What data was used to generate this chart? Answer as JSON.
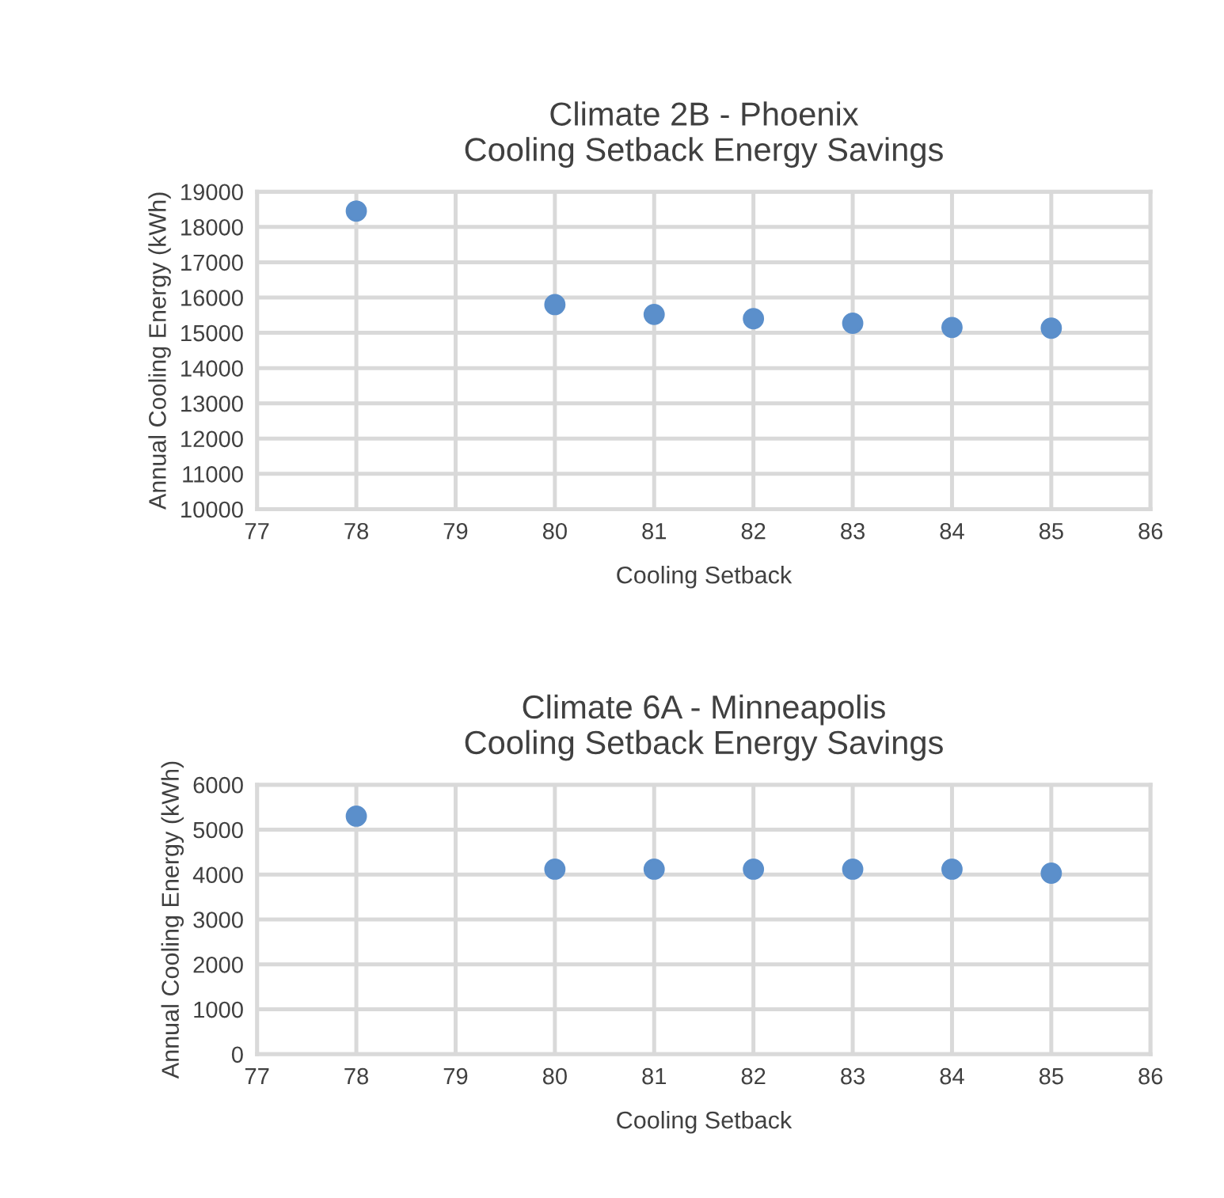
{
  "chart_data": [
    {
      "type": "scatter",
      "title": "Climate 2B - Phoenix\nCooling Setback Energy Savings",
      "xlabel": "Cooling Setback",
      "ylabel": "Annual Cooling Energy (kWh)",
      "x": [
        78,
        80,
        81,
        82,
        83,
        84,
        85
      ],
      "series": [
        {
          "color": "#5b8fcb",
          "values": [
            18450,
            15800,
            15520,
            15400,
            15270,
            15150,
            15130
          ]
        }
      ],
      "xlim": [
        77,
        86
      ],
      "xticks": [
        77,
        78,
        79,
        80,
        81,
        82,
        83,
        84,
        85,
        86
      ],
      "ylim": [
        10000,
        19000
      ],
      "yticks": [
        10000,
        11000,
        12000,
        13000,
        14000,
        15000,
        16000,
        17000,
        18000,
        19000
      ],
      "grid": true,
      "marker": "circle"
    },
    {
      "type": "scatter",
      "title": "Climate 6A - Minneapolis\nCooling Setback Energy Savings",
      "xlabel": "Cooling Setback",
      "ylabel": "Annual Cooling Energy (kWh)",
      "x": [
        78,
        80,
        81,
        82,
        83,
        84,
        85
      ],
      "series": [
        {
          "color": "#5b8fcb",
          "values": [
            5300,
            4120,
            4120,
            4120,
            4120,
            4120,
            4030
          ]
        }
      ],
      "xlim": [
        77,
        86
      ],
      "xticks": [
        77,
        78,
        79,
        80,
        81,
        82,
        83,
        84,
        85,
        86
      ],
      "ylim": [
        0,
        6000
      ],
      "yticks": [
        0,
        1000,
        2000,
        3000,
        4000,
        5000,
        6000
      ],
      "grid": true,
      "marker": "circle"
    }
  ]
}
